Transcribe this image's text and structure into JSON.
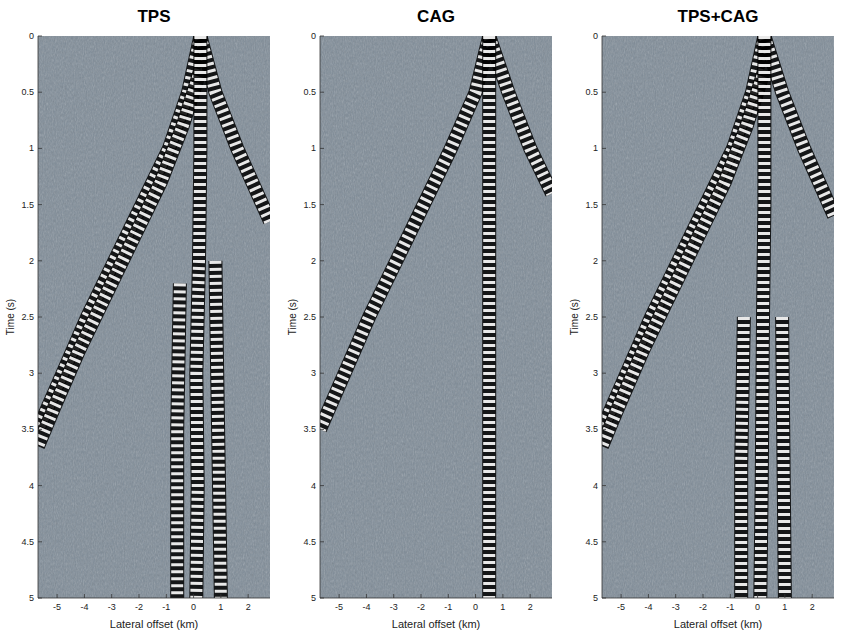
{
  "chart_data": [
    {
      "type": "line",
      "title": "TPS",
      "x_label": "Lateral offset (km)",
      "y_label": "Time (s)",
      "xlim": [
        -5.7,
        2.8
      ],
      "ylim": [
        0,
        5
      ],
      "xticks": [
        -5,
        -4,
        -3,
        -2,
        -1,
        0,
        1,
        2
      ],
      "yticks": [
        0,
        0.5,
        1,
        1.5,
        2,
        2.5,
        3,
        3.5,
        4,
        4.5,
        5
      ],
      "series": [
        {
          "color": "#000000",
          "x": [
            0.25,
            -0.2,
            -0.9,
            -1.9,
            -2.9,
            -3.9,
            -4.8,
            -5.7
          ],
          "values": [
            0,
            0.5,
            1.0,
            1.5,
            2.0,
            2.5,
            3.0,
            3.5
          ]
        },
        {
          "color": "#000000",
          "x": [
            0.25,
            0.8,
            1.6,
            2.8
          ],
          "values": [
            0,
            0.5,
            1.0,
            1.65
          ]
        },
        {
          "color": "#000000",
          "x": [
            0.25,
            -0.4,
            -1.2,
            -2.2,
            -3.2,
            -4.2,
            -5.1,
            -5.7
          ],
          "values": [
            0.3,
            0.8,
            1.3,
            1.8,
            2.3,
            2.8,
            3.3,
            3.65
          ]
        },
        {
          "color": "#000000",
          "x": [
            0.25,
            0.25,
            0.2,
            0.1,
            0.15,
            0.1
          ],
          "values": [
            0,
            1.0,
            2.0,
            3.0,
            4.0,
            5.0
          ]
        },
        {
          "color": "#000000",
          "x": [
            -0.5,
            -0.6,
            -0.6
          ],
          "values": [
            2.2,
            3.5,
            5.0
          ]
        },
        {
          "color": "#000000",
          "x": [
            0.8,
            0.9,
            1.0
          ],
          "values": [
            2.0,
            3.5,
            5.0
          ]
        }
      ]
    },
    {
      "type": "line",
      "title": "CAG",
      "x_label": "Lateral offset (km)",
      "y_label": "Time (s)",
      "xlim": [
        -5.7,
        2.8
      ],
      "ylim": [
        0,
        5
      ],
      "xticks": [
        -5,
        -4,
        -3,
        -2,
        -1,
        0,
        1,
        2
      ],
      "yticks": [
        0,
        0.5,
        1,
        1.5,
        2,
        2.5,
        3,
        3.5,
        4,
        4.5,
        5
      ],
      "series": [
        {
          "color": "#000000",
          "x": [
            0.5,
            0.0,
            -0.9,
            -1.9,
            -2.9,
            -3.9,
            -4.8,
            -5.7
          ],
          "values": [
            0,
            0.5,
            1.0,
            1.5,
            2.0,
            2.5,
            3.0,
            3.5
          ]
        },
        {
          "color": "#000000",
          "x": [
            0.5,
            1.2,
            2.0,
            2.8
          ],
          "values": [
            0,
            0.5,
            1.0,
            1.4
          ]
        },
        {
          "color": "#000000",
          "x": [
            0.5,
            0.5,
            0.5
          ],
          "values": [
            0,
            2.5,
            5.0
          ]
        }
      ]
    },
    {
      "type": "line",
      "title": "TPS+CAG",
      "x_label": "Lateral offset (km)",
      "y_label": "Time (s)",
      "xlim": [
        -5.7,
        2.8
      ],
      "ylim": [
        0,
        5
      ],
      "xticks": [
        -5,
        -4,
        -3,
        -2,
        -1,
        0,
        1,
        2
      ],
      "yticks": [
        0,
        0.5,
        1,
        1.5,
        2,
        2.5,
        3,
        3.5,
        4,
        4.5,
        5
      ],
      "series": [
        {
          "color": "#000000",
          "x": [
            0.25,
            -0.2,
            -0.9,
            -1.9,
            -2.9,
            -3.9,
            -4.8,
            -5.7
          ],
          "values": [
            0,
            0.5,
            1.0,
            1.5,
            2.0,
            2.5,
            3.0,
            3.5
          ]
        },
        {
          "color": "#000000",
          "x": [
            0.25,
            0.9,
            1.7,
            2.8
          ],
          "values": [
            0,
            0.5,
            1.0,
            1.6
          ]
        },
        {
          "color": "#000000",
          "x": [
            0.25,
            -0.4,
            -1.2,
            -2.2,
            -3.2,
            -4.2,
            -5.1,
            -5.7
          ],
          "values": [
            0.3,
            0.8,
            1.3,
            1.8,
            2.3,
            2.8,
            3.3,
            3.65
          ]
        },
        {
          "color": "#000000",
          "x": [
            0.25,
            0.25,
            0.2,
            0.15,
            0.1
          ],
          "values": [
            0,
            1.5,
            2.5,
            4.0,
            5.0
          ]
        },
        {
          "color": "#000000",
          "x": [
            -0.5,
            -0.6,
            -0.6
          ],
          "values": [
            2.5,
            3.8,
            5.0
          ]
        },
        {
          "color": "#000000",
          "x": [
            0.9,
            1.0
          ],
          "values": [
            2.5,
            5.0
          ]
        }
      ]
    }
  ]
}
